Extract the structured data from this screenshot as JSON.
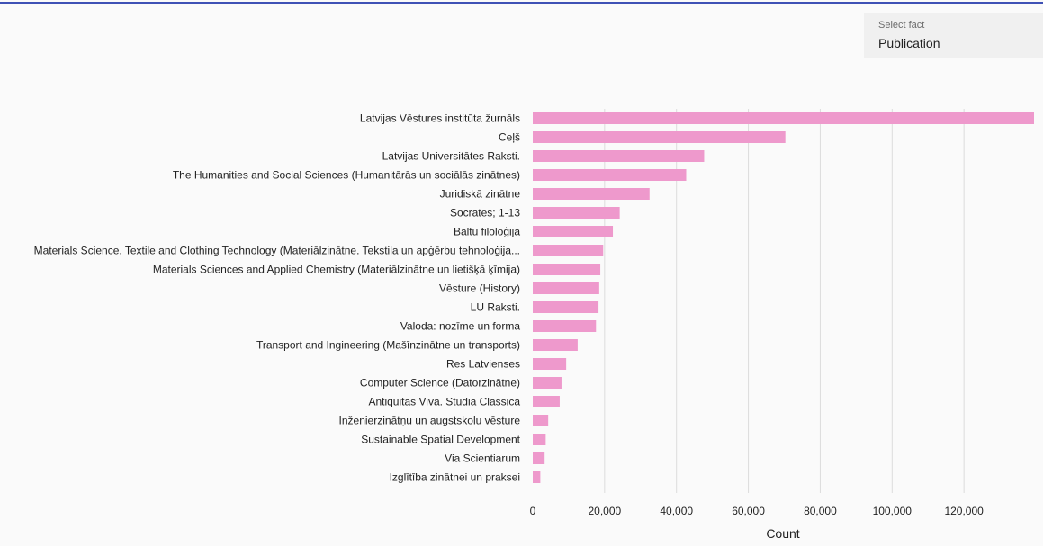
{
  "controls": {
    "fact_select": {
      "label": "Select fact",
      "value": "Publication"
    }
  },
  "chart_data": {
    "type": "bar",
    "orientation": "horizontal",
    "title": "",
    "xlabel": "Count",
    "ylabel": "",
    "xlim": [
      0,
      139500
    ],
    "x_ticks": [
      "0",
      "20,000",
      "40,000",
      "60,000",
      "80,000",
      "100,000",
      "120,000"
    ],
    "x_tick_values": [
      0,
      20000,
      40000,
      60000,
      80000,
      100000,
      120000
    ],
    "grid": true,
    "bar_color": "#ee99cc",
    "categories": [
      "Latvijas Vēstures institūta žurnāls",
      "Ceļš",
      "Latvijas Universitātes Raksti.",
      "The Humanities and Social Sciences (Humanitārās un sociālās zinātnes)",
      "Juridiskā zinātne",
      "Socrates; 1-13",
      "Baltu filoloģija",
      "Materials Science. Textile and Clothing Technology (Materiālzinātne. Tekstila un apģērbu tehnoloģija...",
      "Materials Sciences and Applied Chemistry (Materiālzinātne un lietišķā ķīmija)",
      "Vēsture (History)",
      "LU Raksti.",
      "Valoda: nozīme un forma",
      "Transport and Ingineering (Mašīnzinātne un transports)",
      "Res Latvienses",
      "Computer Science (Datorzinātne)",
      "Antiquitas Viva. Studia Classica",
      "Inženierzinātņu un augstskolu vēsture",
      "Sustainable Spatial Development",
      "Via Scientiarum",
      "Izglītība zinātnei un praksei"
    ],
    "values": [
      139500,
      70300,
      47700,
      42700,
      32500,
      24200,
      22300,
      19600,
      18800,
      18500,
      18300,
      17600,
      12500,
      9300,
      8000,
      7500,
      4300,
      3600,
      3300,
      2100
    ]
  }
}
